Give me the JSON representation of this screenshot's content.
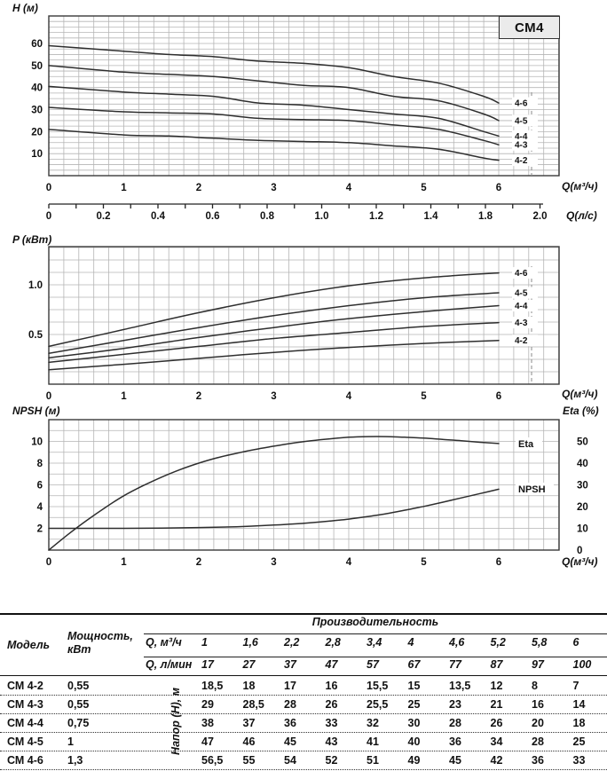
{
  "badge": "СМ4",
  "chart_data": [
    {
      "type": "line",
      "title": "СМ4",
      "ylabel": "H (м)",
      "xlabel": "Q(м³/ч)",
      "xlabel2": "Q(л/с)",
      "xlim": [
        0,
        6.8
      ],
      "ylim": [
        0,
        72.5
      ],
      "grid": true,
      "x_major_ticks": [
        0,
        1,
        2,
        3,
        4,
        5,
        6
      ],
      "y_major_ticks": [
        10,
        20,
        30,
        40,
        50,
        60
      ],
      "x_minor_step": 0.2,
      "y_minor_step": 2.5,
      "x2_tick_labels": [
        "0",
        "0.2",
        "0.4",
        "0.6",
        "0.8",
        "1.0",
        "1.2",
        "1.4",
        "1.8",
        "2.0"
      ],
      "legend_position": "right-inline",
      "x": [
        0,
        1,
        1.6,
        2.2,
        2.8,
        3.4,
        4,
        4.6,
        5.2,
        5.8,
        6
      ],
      "series": [
        {
          "name": "4-6",
          "values": [
            59,
            56.5,
            55,
            54,
            52,
            51,
            49,
            45,
            42,
            36,
            33
          ]
        },
        {
          "name": "4-5",
          "values": [
            50,
            47,
            46,
            45,
            43,
            41,
            40,
            36,
            34,
            28,
            25
          ]
        },
        {
          "name": "4-4",
          "values": [
            40.5,
            38,
            37,
            36,
            33,
            32,
            30,
            28,
            26,
            20,
            18
          ]
        },
        {
          "name": "4-3",
          "values": [
            31,
            29,
            28.5,
            28,
            26,
            25.5,
            25,
            23,
            21,
            16,
            14
          ]
        },
        {
          "name": "4-2",
          "values": [
            21,
            18.5,
            18,
            17,
            16,
            15.5,
            15,
            13.5,
            12,
            8,
            7
          ]
        }
      ]
    },
    {
      "type": "line",
      "ylabel": "P (кВт)",
      "xlabel": "Q(м³/ч)",
      "xlim": [
        0,
        6.8
      ],
      "ylim": [
        0,
        1.384
      ],
      "grid": true,
      "x_major_ticks": [
        0,
        1,
        2,
        3,
        4,
        5,
        6
      ],
      "y_major_ticks": [
        0.5,
        1.0
      ],
      "x_minor_step": 0.2,
      "y_minor_step": 0.125,
      "legend_position": "right-inline",
      "x": [
        0,
        1,
        2,
        3,
        4,
        5,
        6
      ],
      "series": [
        {
          "name": "4-6",
          "values": [
            0.38,
            0.55,
            0.72,
            0.87,
            0.99,
            1.07,
            1.12
          ]
        },
        {
          "name": "4-5",
          "values": [
            0.31,
            0.44,
            0.57,
            0.69,
            0.79,
            0.87,
            0.92
          ]
        },
        {
          "name": "4-4",
          "values": [
            0.265,
            0.36,
            0.47,
            0.57,
            0.66,
            0.73,
            0.79
          ]
        },
        {
          "name": "4-3",
          "values": [
            0.22,
            0.3,
            0.38,
            0.46,
            0.52,
            0.58,
            0.62
          ]
        },
        {
          "name": "4-2",
          "values": [
            0.145,
            0.2,
            0.26,
            0.32,
            0.37,
            0.41,
            0.44
          ]
        }
      ]
    },
    {
      "type": "line",
      "ylabel": "NPSH (м)",
      "ylabel_right": "Eta (%)",
      "xlabel": "Q(м³/ч)",
      "xlim": [
        0,
        6.8
      ],
      "ylim": [
        0,
        12
      ],
      "ylim_right": [
        0,
        60
      ],
      "grid": true,
      "x_major_ticks": [
        0,
        1,
        2,
        3,
        4,
        5,
        6
      ],
      "y_major_ticks": [
        2,
        4,
        6,
        8,
        10
      ],
      "y_right_ticks": [
        0,
        10,
        20,
        30,
        40,
        50
      ],
      "x_minor_step": 0.2,
      "y_minor_step": 1,
      "series": [
        {
          "name": "Eta",
          "axis": "right",
          "x": [
            0,
            0.25,
            0.5,
            0.75,
            1,
            1.25,
            1.5,
            1.75,
            2,
            2.25,
            2.5,
            2.75,
            3,
            3.25,
            3.5,
            3.75,
            4,
            4.25,
            4.5,
            4.75,
            5,
            5.25,
            5.5,
            5.75,
            6
          ],
          "values": [
            0,
            7,
            13.5,
            19.5,
            25,
            29.5,
            33.5,
            37,
            40,
            42.5,
            44.5,
            46.3,
            47.8,
            49.2,
            50.3,
            51.2,
            51.9,
            52.2,
            52.2,
            51.9,
            51.5,
            50.9,
            50.3,
            49.6,
            49
          ]
        },
        {
          "name": "NPSH",
          "axis": "left",
          "x": [
            0,
            0.5,
            1,
            1.5,
            2,
            2.5,
            3,
            3.25,
            3.5,
            3.75,
            4,
            4.25,
            4.5,
            4.75,
            5,
            5.25,
            5.5,
            5.75,
            6
          ],
          "values": [
            2,
            2,
            2,
            2.02,
            2.07,
            2.15,
            2.3,
            2.4,
            2.52,
            2.67,
            2.85,
            3.08,
            3.35,
            3.67,
            4.02,
            4.4,
            4.8,
            5.2,
            5.6
          ]
        }
      ]
    }
  ],
  "table": {
    "col_model": "Модель",
    "col_power": "Мощность, кВт",
    "group_header": "Производительность",
    "rotated_label": "Напор (Н), м",
    "row_q_m3": {
      "label": "Q, м³/ч",
      "values": [
        "1",
        "1,6",
        "2,2",
        "2,8",
        "3,4",
        "4",
        "4,6",
        "5,2",
        "5,8",
        "6"
      ]
    },
    "row_q_lmin": {
      "label": "Q, л/мин",
      "values": [
        "17",
        "27",
        "37",
        "47",
        "57",
        "67",
        "77",
        "87",
        "97",
        "100"
      ]
    },
    "rows": [
      {
        "model": "СМ 4-2",
        "power": "0,55",
        "values": [
          "18,5",
          "18",
          "17",
          "16",
          "15,5",
          "15",
          "13,5",
          "12",
          "8",
          "7"
        ]
      },
      {
        "model": "СМ 4-3",
        "power": "0,55",
        "values": [
          "29",
          "28,5",
          "28",
          "26",
          "25,5",
          "25",
          "23",
          "21",
          "16",
          "14"
        ]
      },
      {
        "model": "СМ 4-4",
        "power": "0,75",
        "values": [
          "38",
          "37",
          "36",
          "33",
          "32",
          "30",
          "28",
          "26",
          "20",
          "18"
        ]
      },
      {
        "model": "СМ 4-5",
        "power": "1",
        "values": [
          "47",
          "46",
          "45",
          "43",
          "41",
          "40",
          "36",
          "34",
          "28",
          "25"
        ]
      },
      {
        "model": "СМ 4-6",
        "power": "1,3",
        "values": [
          "56,5",
          "55",
          "54",
          "52",
          "51",
          "49",
          "45",
          "42",
          "36",
          "33"
        ]
      }
    ]
  }
}
